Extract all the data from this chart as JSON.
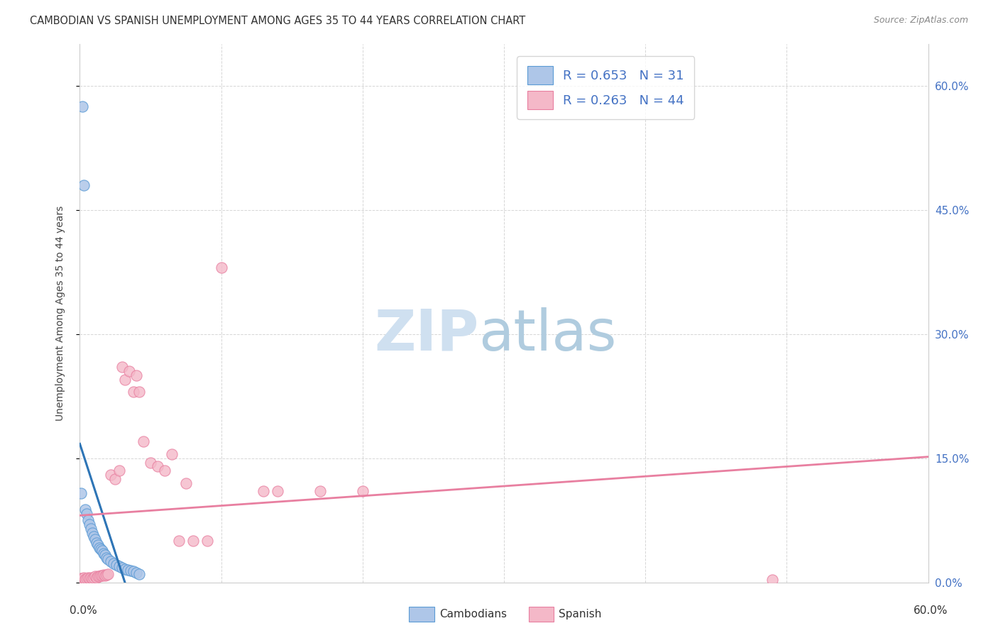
{
  "title": "CAMBODIAN VS SPANISH UNEMPLOYMENT AMONG AGES 35 TO 44 YEARS CORRELATION CHART",
  "source": "Source: ZipAtlas.com",
  "ylabel": "Unemployment Among Ages 35 to 44 years",
  "legend": {
    "cambodian_R": 0.653,
    "cambodian_N": 31,
    "spanish_R": 0.263,
    "spanish_N": 44
  },
  "cambodian_color": "#aec6e8",
  "cambodian_edge_color": "#5b9bd5",
  "cambodian_line_color": "#2e75b6",
  "spanish_color": "#f4b8c8",
  "spanish_edge_color": "#e87fa0",
  "spanish_line_color": "#e87fa0",
  "cambodian_x": [
    0.001,
    0.002,
    0.003,
    0.004,
    0.005,
    0.006,
    0.007,
    0.008,
    0.009,
    0.01,
    0.011,
    0.012,
    0.013,
    0.014,
    0.015,
    0.016,
    0.017,
    0.018,
    0.019,
    0.02,
    0.022,
    0.024,
    0.026,
    0.028,
    0.03,
    0.032,
    0.034,
    0.036,
    0.038,
    0.04,
    0.042
  ],
  "cambodian_y": [
    0.108,
    0.575,
    0.48,
    0.088,
    0.083,
    0.075,
    0.07,
    0.065,
    0.06,
    0.055,
    0.052,
    0.048,
    0.045,
    0.042,
    0.04,
    0.038,
    0.035,
    0.033,
    0.03,
    0.028,
    0.025,
    0.023,
    0.021,
    0.019,
    0.018,
    0.016,
    0.015,
    0.014,
    0.013,
    0.012,
    0.01
  ],
  "spanish_x": [
    0.001,
    0.002,
    0.003,
    0.004,
    0.005,
    0.006,
    0.007,
    0.008,
    0.009,
    0.01,
    0.011,
    0.012,
    0.013,
    0.014,
    0.015,
    0.016,
    0.017,
    0.018,
    0.019,
    0.02,
    0.022,
    0.025,
    0.028,
    0.03,
    0.032,
    0.035,
    0.038,
    0.04,
    0.042,
    0.045,
    0.05,
    0.055,
    0.06,
    0.065,
    0.07,
    0.075,
    0.08,
    0.09,
    0.1,
    0.13,
    0.14,
    0.17,
    0.2,
    0.49
  ],
  "spanish_y": [
    0.005,
    0.005,
    0.006,
    0.004,
    0.005,
    0.006,
    0.005,
    0.006,
    0.005,
    0.006,
    0.007,
    0.006,
    0.007,
    0.007,
    0.008,
    0.008,
    0.009,
    0.008,
    0.009,
    0.01,
    0.13,
    0.125,
    0.135,
    0.26,
    0.245,
    0.255,
    0.23,
    0.25,
    0.23,
    0.17,
    0.145,
    0.14,
    0.135,
    0.155,
    0.05,
    0.12,
    0.05,
    0.05,
    0.38,
    0.11,
    0.11,
    0.11,
    0.11,
    0.003
  ],
  "xlim": [
    0.0,
    0.6
  ],
  "ylim": [
    0.0,
    0.65
  ],
  "yticks": [
    0.0,
    0.15,
    0.3,
    0.45,
    0.6
  ],
  "ytick_labels": [
    "0.0%",
    "15.0%",
    "30.0%",
    "45.0%",
    "60.0%"
  ],
  "xtick_labels_bottom": [
    "0.0%",
    "60.0%"
  ],
  "watermark_zip": "ZIP",
  "watermark_atlas": "atlas"
}
